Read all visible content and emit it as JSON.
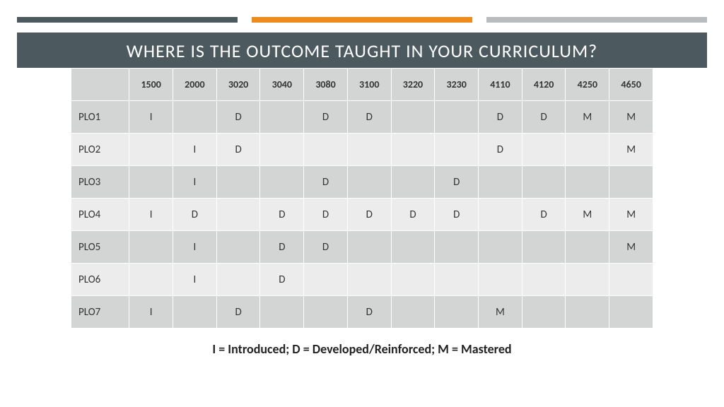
{
  "accent_bars": {
    "left": "#4c5a5f",
    "middle": "#ed8b1c",
    "right": "#b9bcbd"
  },
  "title": "WHERE IS THE OUTCOME TAUGHT IN YOUR CURRICULUM?",
  "title_band_bg": "#4c5a5f",
  "table": {
    "header_bg": "#d3d4d4",
    "row_colors": {
      "odd": "#d3d4d4",
      "even": "#ececec"
    },
    "columns": [
      "1500",
      "2000",
      "3020",
      "3040",
      "3080",
      "3100",
      "3220",
      "3230",
      "4110",
      "4120",
      "4250",
      "4650"
    ],
    "rows": [
      {
        "label": "PLO1",
        "cells": [
          "I",
          "",
          "D",
          "",
          "D",
          "D",
          "",
          "",
          "D",
          "D",
          "M",
          "M"
        ]
      },
      {
        "label": "PLO2",
        "cells": [
          "",
          "I",
          "D",
          "",
          "",
          "",
          "",
          "",
          "D",
          "",
          "",
          "M"
        ]
      },
      {
        "label": "PLO3",
        "cells": [
          "",
          "I",
          "",
          "",
          "D",
          "",
          "",
          "D",
          "",
          "",
          "",
          ""
        ]
      },
      {
        "label": "PLO4",
        "cells": [
          "I",
          "D",
          "",
          "D",
          "D",
          "D",
          "D",
          "D",
          "",
          "D",
          "M",
          "M"
        ]
      },
      {
        "label": "PLO5",
        "cells": [
          "",
          "I",
          "",
          "D",
          "D",
          "",
          "",
          "",
          "",
          "",
          "",
          "M"
        ]
      },
      {
        "label": "PLO6",
        "cells": [
          "",
          "I",
          "",
          "D",
          "",
          "",
          "",
          "",
          "",
          "",
          "",
          ""
        ]
      },
      {
        "label": "PLO7",
        "cells": [
          "I",
          "",
          "D",
          "",
          "",
          "D",
          "",
          "",
          "M",
          "",
          "",
          ""
        ]
      }
    ]
  },
  "legend": "I = Introduced; D = Developed/Reinforced; M = Mastered"
}
